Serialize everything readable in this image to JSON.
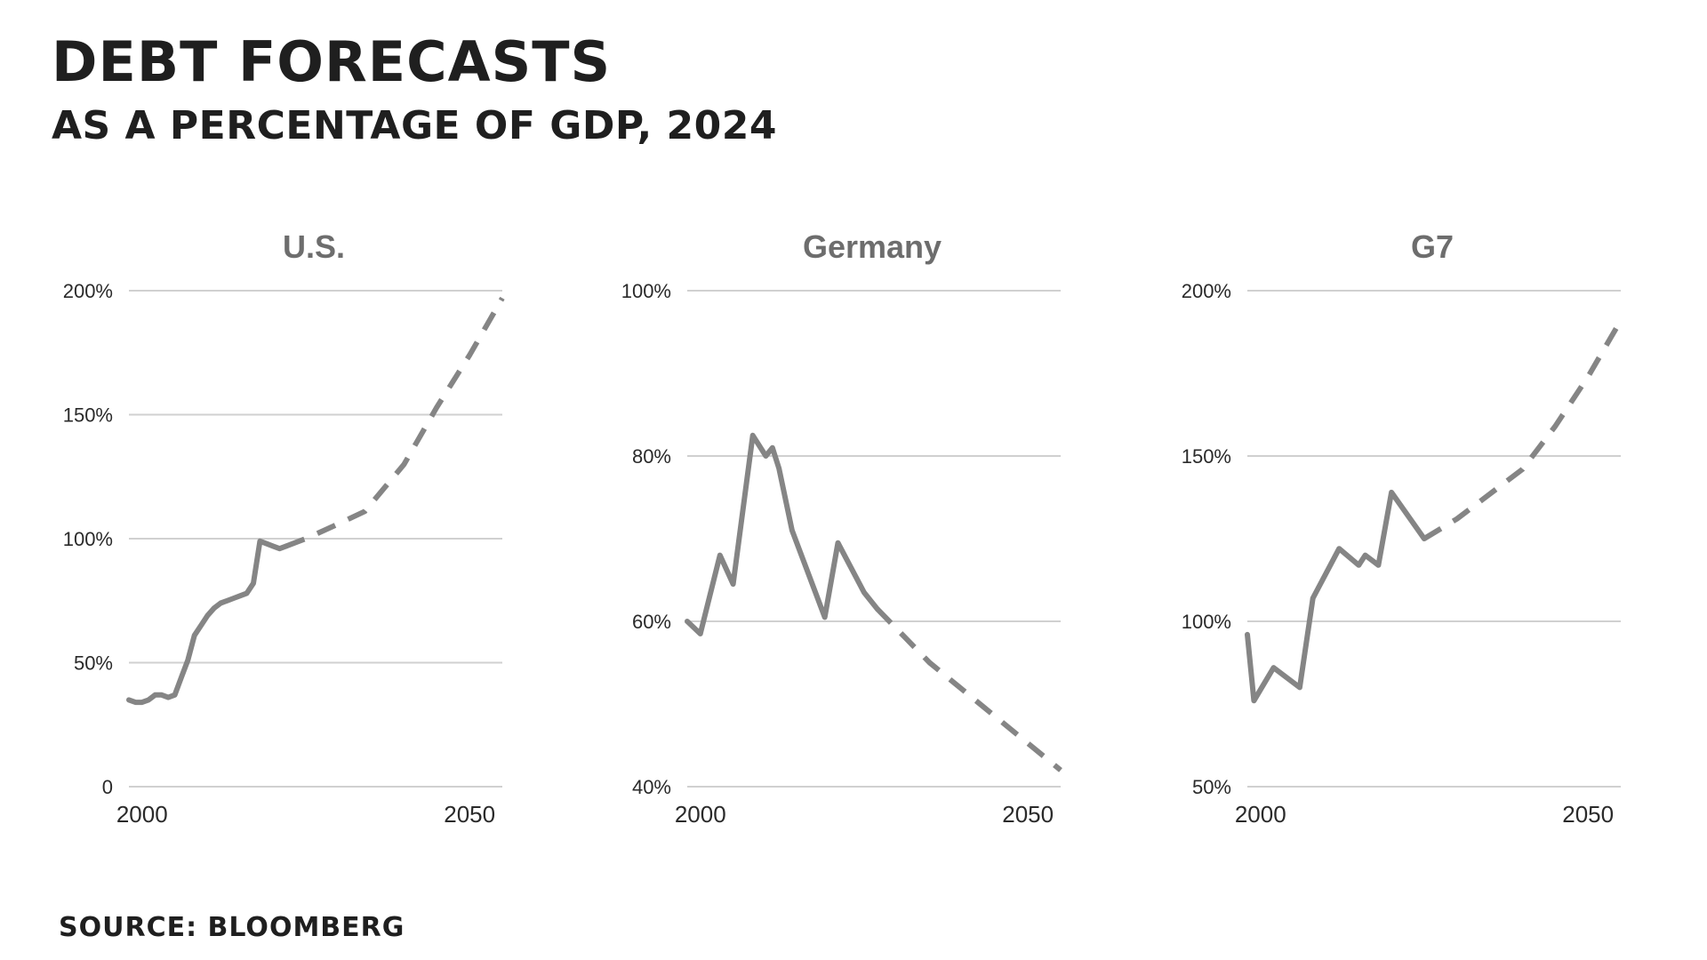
{
  "title": "DEBT FORECASTS",
  "subtitle": "AS A PERCENTAGE OF GDP, 2024",
  "source": "SOURCE: BLOOMBERG",
  "colors": {
    "line": "#858585",
    "grid": "#d0d0d0",
    "panel_title": "#6d6d6d",
    "text": "#1f1f1f"
  },
  "chart_data": [
    {
      "type": "line",
      "title": "U.S.",
      "ylim": [
        0,
        200
      ],
      "xlim": [
        1998,
        2055
      ],
      "yticks": [
        0,
        50,
        100,
        150,
        200
      ],
      "ytick_labels": [
        "0",
        "50%",
        "100%",
        "150%",
        "200%"
      ],
      "xticks": [
        2000,
        2050
      ],
      "xtick_labels": [
        "2000",
        "2050"
      ],
      "grid": true,
      "series": [
        {
          "style": "solid",
          "x": [
            1998,
            1999,
            2000,
            2001,
            2002,
            2003,
            2004,
            2005,
            2006,
            2007,
            2008,
            2009,
            2010,
            2011,
            2012,
            2013,
            2014,
            2015,
            2016,
            2017,
            2018,
            2019,
            2020,
            2021,
            2022
          ],
          "y": [
            35,
            34,
            34,
            35,
            37,
            37,
            36,
            37,
            44,
            51,
            61,
            65,
            69,
            72,
            74,
            75,
            76,
            77,
            78,
            82,
            99,
            98,
            97,
            96,
            97
          ]
        },
        {
          "style": "dashed",
          "x": [
            2022,
            2025,
            2030,
            2034,
            2040,
            2045,
            2050,
            2055
          ],
          "y": [
            97,
            100,
            106,
            111,
            130,
            153,
            174,
            197
          ]
        }
      ]
    },
    {
      "type": "line",
      "title": "Germany",
      "ylim": [
        40,
        100
      ],
      "xlim": [
        1998,
        2055
      ],
      "yticks": [
        40,
        60,
        80,
        100
      ],
      "ytick_labels": [
        "40%",
        "60%",
        "80%",
        "100%"
      ],
      "xticks": [
        2000,
        2050
      ],
      "xtick_labels": [
        "2000",
        "2050"
      ],
      "grid": true,
      "series": [
        {
          "style": "solid",
          "x": [
            1998,
            2000,
            2003,
            2005,
            2008,
            2010,
            2011,
            2012,
            2014,
            2019,
            2021,
            2025,
            2027
          ],
          "y": [
            60,
            58.5,
            68,
            64.5,
            82.5,
            80,
            81,
            78.5,
            71,
            60.5,
            69.5,
            63.5,
            61.5
          ]
        },
        {
          "style": "dashed",
          "x": [
            2027,
            2035,
            2045,
            2055
          ],
          "y": [
            61.5,
            55,
            48.5,
            42
          ]
        }
      ]
    },
    {
      "type": "line",
      "title": "G7",
      "ylim": [
        50,
        200
      ],
      "xlim": [
        1998,
        2055
      ],
      "yticks": [
        50,
        100,
        150,
        200
      ],
      "ytick_labels": [
        "50%",
        "100%",
        "150%",
        "200%"
      ],
      "xticks": [
        2000,
        2050
      ],
      "xtick_labels": [
        "2000",
        "2050"
      ],
      "grid": true,
      "series": [
        {
          "style": "solid",
          "x": [
            1998,
            1999,
            2002,
            2006,
            2008,
            2012,
            2015,
            2016,
            2018,
            2020,
            2025
          ],
          "y": [
            96,
            76,
            86,
            80,
            107,
            122,
            117,
            120,
            117,
            139,
            125
          ]
        },
        {
          "style": "dashed",
          "x": [
            2025,
            2030,
            2040,
            2045,
            2050,
            2055
          ],
          "y": [
            125,
            131,
            146,
            159,
            174,
            191
          ]
        }
      ]
    }
  ]
}
